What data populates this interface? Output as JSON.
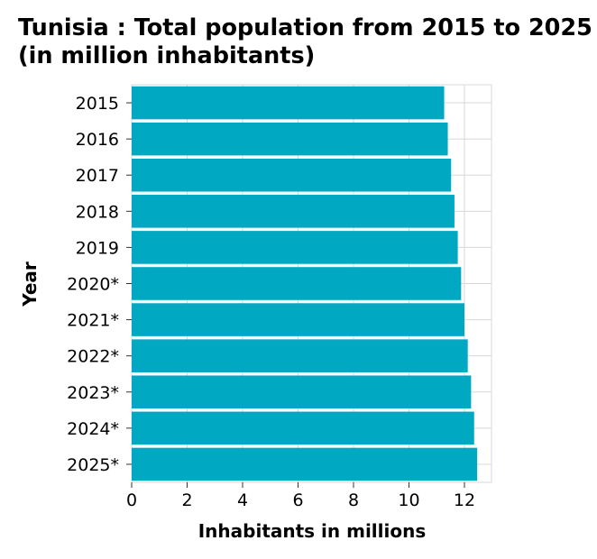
{
  "chart_data": {
    "type": "bar",
    "orientation": "horizontal",
    "title": "Tunisia : Total population from 2015 to 2025 (in million inhabitants)",
    "xlabel": "Inhabitants in millions",
    "ylabel": "Year",
    "categories": [
      "2015",
      "2016",
      "2017",
      "2018",
      "2019",
      "2020*",
      "2021*",
      "2022*",
      "2023*",
      "2024*",
      "2025*"
    ],
    "values": [
      11.27,
      11.4,
      11.52,
      11.64,
      11.76,
      11.88,
      12.0,
      12.12,
      12.24,
      12.35,
      12.46
    ],
    "xlim": [
      0,
      13
    ],
    "xticks": [
      0,
      2,
      4,
      6,
      8,
      10,
      12
    ],
    "grid": true,
    "bar_color": "#00a9c1",
    "grid_color": "#d8d8d8"
  }
}
